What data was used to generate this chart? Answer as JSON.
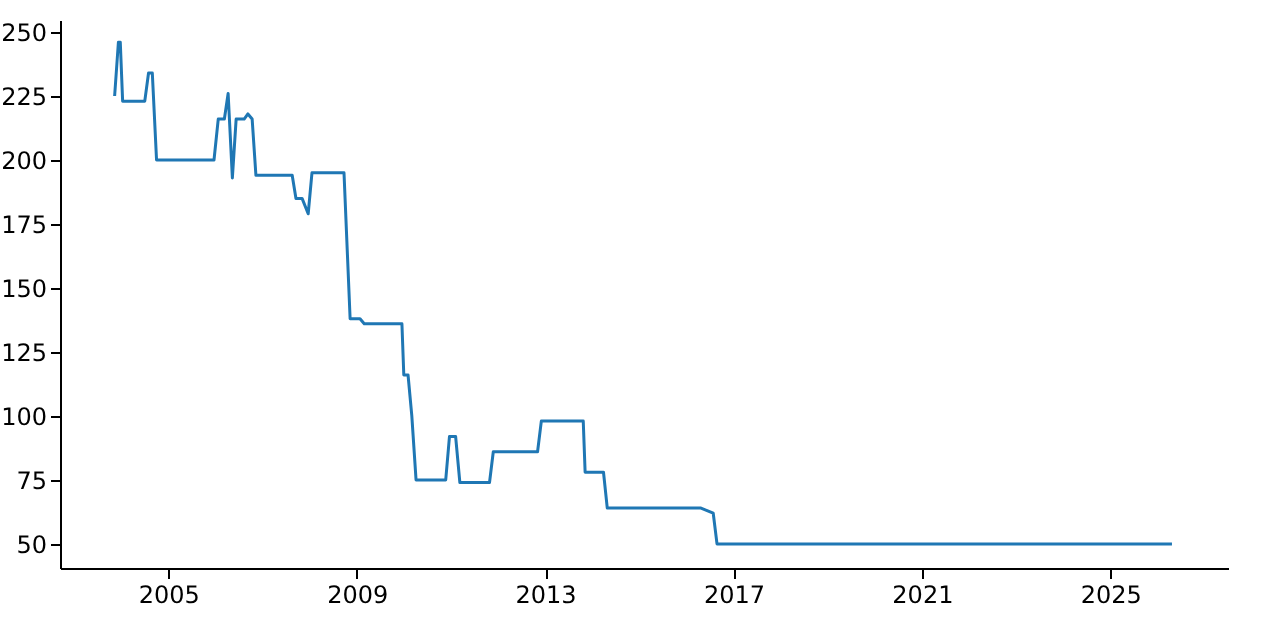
{
  "chart_data": {
    "type": "line",
    "x": [
      2003.86,
      2003.94,
      2003.98,
      2004.03,
      2004.5,
      2004.58,
      2004.66,
      2004.75,
      2005.97,
      2006.06,
      2006.19,
      2006.27,
      2006.36,
      2006.44,
      2006.61,
      2006.69,
      2006.78,
      2006.86,
      2007.63,
      2007.71,
      2007.84,
      2007.97,
      2008.05,
      2008.73,
      2008.86,
      2009.07,
      2009.16,
      2009.96,
      2010.0,
      2010.09,
      2010.17,
      2010.26,
      2010.89,
      2010.97,
      2011.1,
      2011.19,
      2011.82,
      2011.9,
      2012.84,
      2012.92,
      2013.81,
      2013.85,
      2014.24,
      2014.32,
      2016.31,
      2016.57,
      2016.65,
      2026.31
    ],
    "series": [
      {
        "color": "#1f77b4",
        "values": [
          225,
          246,
          246,
          223,
          223,
          234,
          234,
          200,
          200,
          216,
          216,
          226,
          193,
          216,
          216,
          218,
          216,
          194,
          194,
          185,
          185,
          179,
          195,
          195,
          138,
          138,
          136,
          136,
          116,
          116,
          100,
          75,
          75,
          92,
          92,
          74,
          74,
          86,
          86,
          98,
          98,
          78,
          78,
          64,
          64,
          62,
          50,
          50
        ]
      }
    ],
    "xlim": [
      2002.7,
      2027.5
    ],
    "xticks": [
      2005,
      2009,
      2013,
      2017,
      2021,
      2025
    ],
    "ylim": [
      40.6,
      254.7
    ],
    "yticks": [
      50,
      75,
      100,
      125,
      150,
      175,
      200,
      225,
      250
    ],
    "grid": false
  }
}
